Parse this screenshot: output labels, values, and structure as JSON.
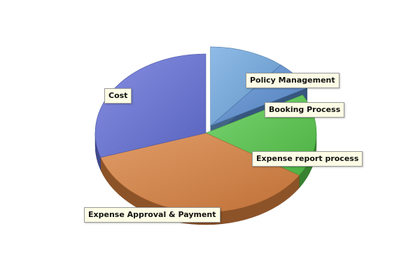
{
  "chart_data": {
    "type": "pie",
    "title": "",
    "slices": [
      {
        "label": "Policy Management",
        "value": 11,
        "color": "#6fa8e0",
        "exploded": true
      },
      {
        "label": "Booking Process",
        "value": 6,
        "color": "#5b8fd4",
        "exploded": true
      },
      {
        "label": "Expense report process",
        "value": 17,
        "color": "#55c84a",
        "exploded": false
      },
      {
        "label": "Expense Approval & Payment",
        "value": 36,
        "color": "#d9803e",
        "exploded": false
      },
      {
        "label": "Cost",
        "value": 30,
        "color": "#6470d8",
        "exploded": false
      }
    ],
    "legend": "none",
    "style": "3d-exploded"
  }
}
